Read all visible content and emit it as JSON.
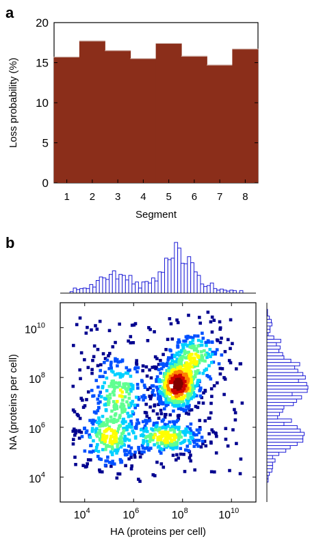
{
  "chart_data": [
    {
      "panel": "a",
      "type": "bar",
      "categories": [
        "1",
        "2",
        "3",
        "4",
        "5",
        "6",
        "7",
        "8"
      ],
      "values": [
        15.7,
        17.7,
        16.5,
        15.5,
        17.4,
        15.8,
        14.7,
        16.7
      ],
      "xlabel": "Segment",
      "ylabel": "Loss probability (%)",
      "ylim": [
        0,
        20
      ],
      "yticks": [
        "0",
        "5",
        "10",
        "15",
        "20"
      ],
      "bar_color": "#8b2e1a",
      "grid": false
    },
    {
      "panel": "b",
      "type": "scatter",
      "subtype": "density scatter with marginal histograms",
      "xlabel": "HA (proteins per cell)",
      "ylabel": "NA (proteins per cell)",
      "x_scale": "log",
      "y_scale": "log",
      "xlim": [
        1000,
        100000000000
      ],
      "ylim": [
        1000,
        100000000000
      ],
      "xticks": [
        {
          "base": "10",
          "exp": "4"
        },
        {
          "base": "10",
          "exp": "6"
        },
        {
          "base": "10",
          "exp": "8"
        },
        {
          "base": "10",
          "exp": "10"
        }
      ],
      "yticks": [
        {
          "base": "10",
          "exp": "4"
        },
        {
          "base": "10",
          "exp": "6"
        },
        {
          "base": "10",
          "exp": "8"
        },
        {
          "base": "10",
          "exp": "10"
        }
      ],
      "clusters": [
        {
          "center_log10": [
            7.8,
            7.7
          ],
          "spread_log10": [
            0.4,
            0.45
          ],
          "peak_density": 1.0
        },
        {
          "center_log10": [
            7.3,
            5.6
          ],
          "spread_log10": [
            0.7,
            0.3
          ],
          "peak_density": 0.55
        },
        {
          "center_log10": [
            5.0,
            5.6
          ],
          "spread_log10": [
            0.5,
            0.5
          ],
          "peak_density": 0.5
        },
        {
          "center_log10": [
            5.4,
            7.3
          ],
          "spread_log10": [
            0.5,
            0.7
          ],
          "peak_density": 0.45
        },
        {
          "center_log10": [
            8.5,
            8.8
          ],
          "spread_log10": [
            0.5,
            0.5
          ],
          "peak_density": 0.45
        }
      ],
      "marginal_histogram_color": "#1a1ad6",
      "density_colormap": [
        "#00008f",
        "#0050ff",
        "#00d0ff",
        "#60ff90",
        "#ffff00",
        "#ff8000",
        "#d00000",
        "#800000"
      ],
      "grid": false
    }
  ],
  "panel_labels": {
    "a": "a",
    "b": "b"
  }
}
